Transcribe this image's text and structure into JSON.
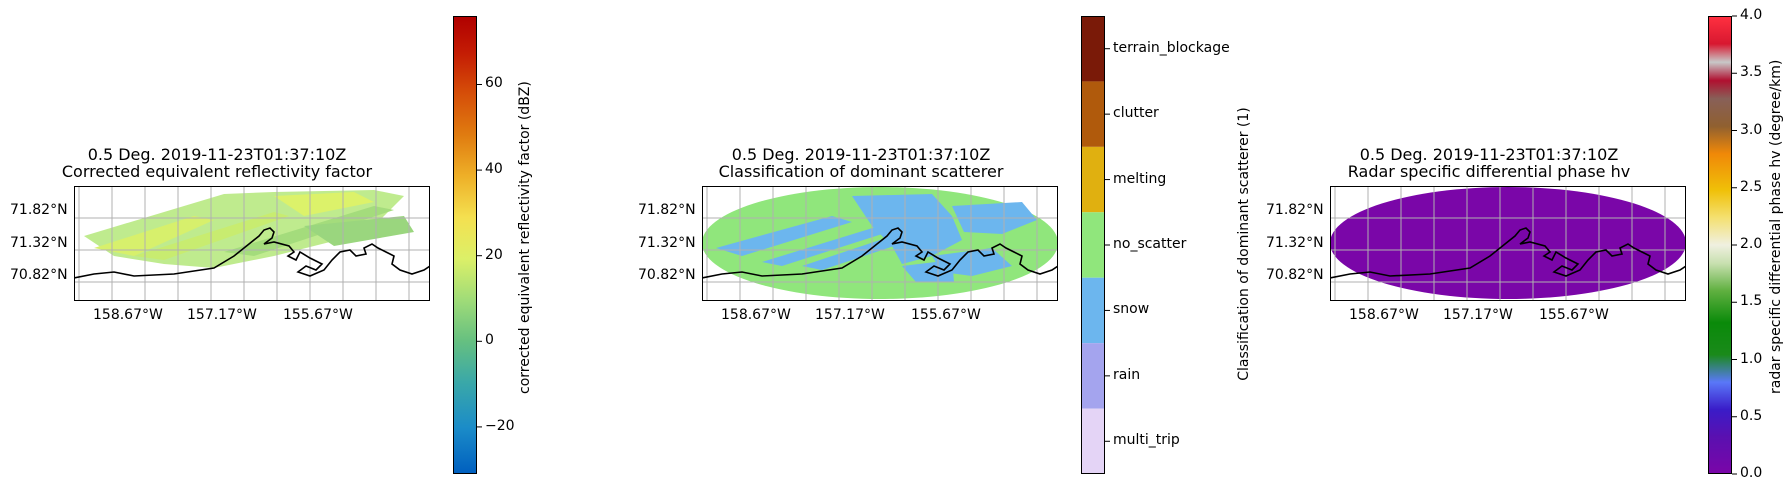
{
  "chart_data": [
    {
      "type": "heatmap",
      "title": "0.5 Deg. 2019-11-23T01:37:10Z",
      "subtitle": "Corrected equivalent reflectivity factor",
      "lat_ticks": [
        "71.82°N",
        "71.32°N",
        "70.82°N"
      ],
      "lon_ticks": [
        "158.67°W",
        "157.17°W",
        "155.67°W"
      ],
      "colorbar": {
        "label": "corrected equivalent reflectivity factor (dBZ)",
        "range": [
          -31,
          76
        ],
        "ticks": [
          -20,
          0,
          20,
          40,
          60
        ],
        "tick_labels": [
          "−20",
          "0",
          "20",
          "40",
          "60"
        ]
      }
    },
    {
      "type": "heatmap",
      "title": "0.5 Deg. 2019-11-23T01:37:10Z",
      "subtitle": "Classification of dominant scatterer",
      "lat_ticks": [
        "71.82°N",
        "71.32°N",
        "70.82°N"
      ],
      "lon_ticks": [
        "158.67°W",
        "157.17°W",
        "155.67°W"
      ],
      "colorbar": {
        "label": "Classification of dominant scatterer (1)",
        "categories": [
          "terrain_blockage",
          "clutter",
          "melting",
          "no_scatter",
          "snow",
          "rain",
          "multi_trip"
        ],
        "colors": [
          "#7a1a08",
          "#b05a0c",
          "#e0b010",
          "#90e67c",
          "#6cb6ee",
          "#a4a4ee",
          "#e4d4f6"
        ]
      }
    },
    {
      "type": "heatmap",
      "title": "0.5 Deg. 2019-11-23T01:37:10Z",
      "subtitle": "Radar specific differential phase hv",
      "lat_ticks": [
        "71.82°N",
        "71.32°N",
        "70.82°N"
      ],
      "lon_ticks": [
        "158.67°W",
        "157.17°W",
        "155.67°W"
      ],
      "colorbar": {
        "label": "radar specific differential phase hv (degree/km)",
        "range": [
          0,
          4
        ],
        "ticks": [
          0,
          0.5,
          1,
          1.5,
          2,
          2.5,
          3,
          3.5,
          4
        ],
        "tick_labels": [
          "0.0",
          "0.5",
          "1.0",
          "1.5",
          "2.0",
          "2.5",
          "3.0",
          "3.5",
          "4.0"
        ]
      }
    }
  ]
}
